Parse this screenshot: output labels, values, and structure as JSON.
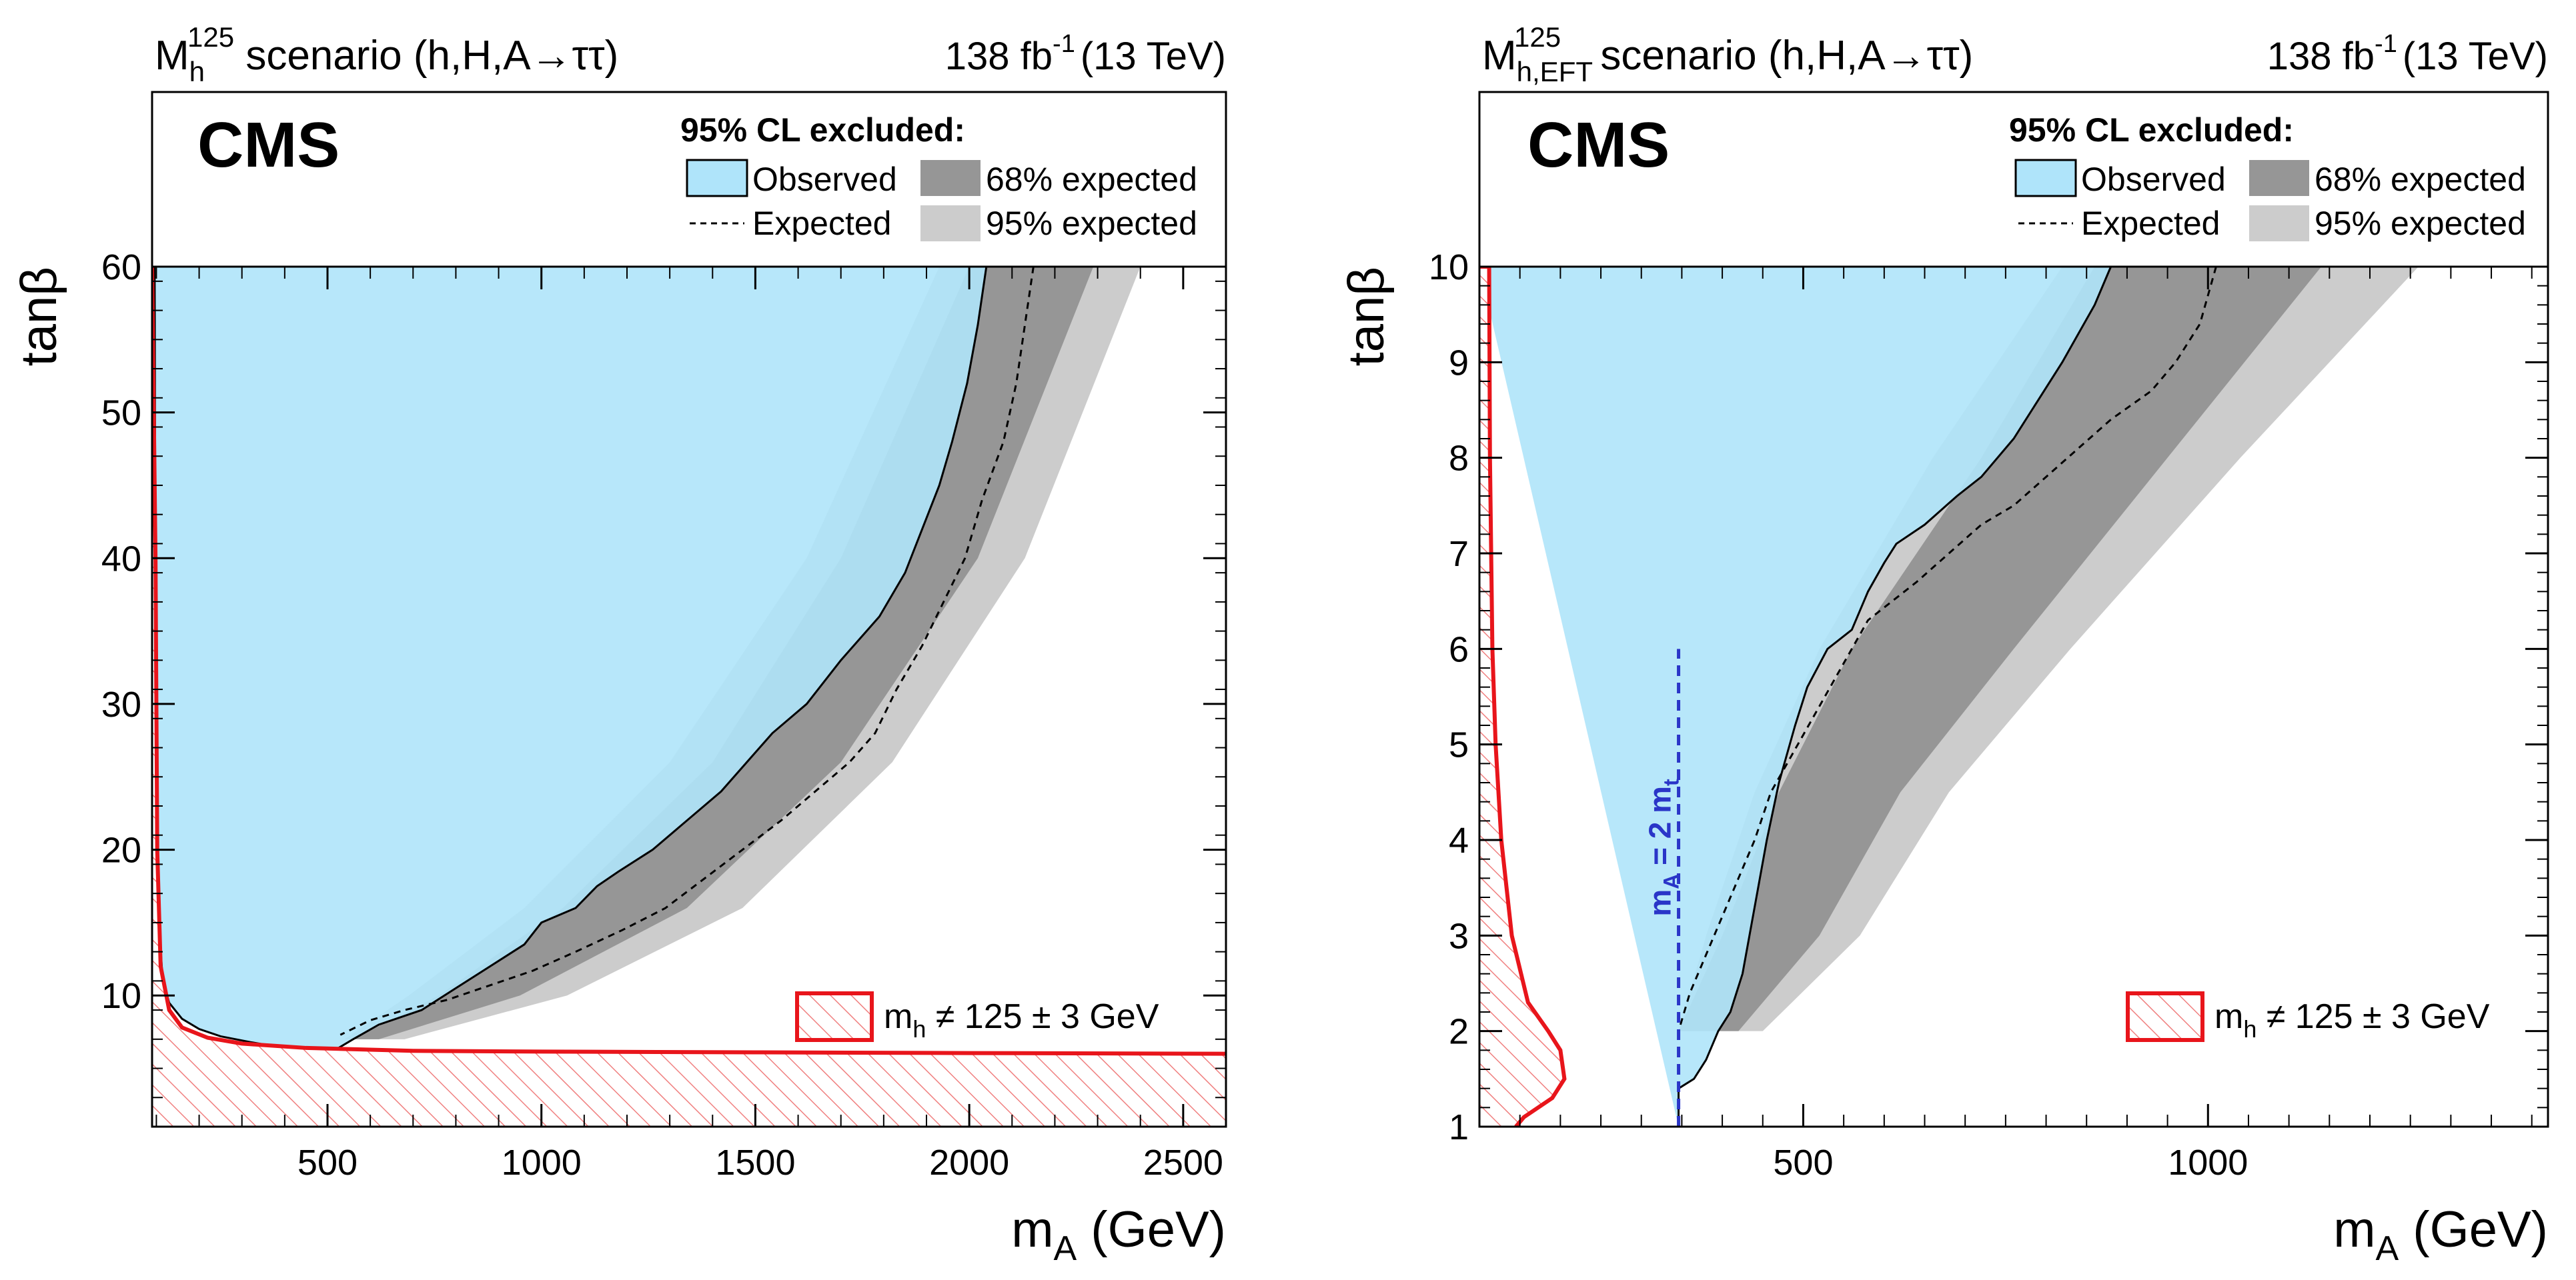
{
  "chart_data": [
    {
      "type": "area",
      "title": "M_h^125 scenario (h,H,A→ττ)",
      "title_main": "M",
      "title_sub": "h",
      "title_sup": "125",
      "title_rest": " scenario (h,H,A→ττ)",
      "lumi": "138 fb",
      "lumi_exp": "-1",
      "lumi_energy": "(13 TeV)",
      "experiment": "CMS",
      "xlabel_main": "m",
      "xlabel_sub": "A",
      "xlabel_rest": " (GeV)",
      "ylabel": "tanβ",
      "xlim": [
        90,
        2600
      ],
      "ylim": [
        1,
        60
      ],
      "xticks": [
        500,
        1000,
        1500,
        2000,
        2500
      ],
      "yticks": [
        10,
        20,
        30,
        40,
        50,
        60
      ],
      "legend": {
        "header": "95% CL excluded:",
        "observed": "Observed",
        "expected": "Expected",
        "band68": "68% expected",
        "band95": "95% expected"
      },
      "hatch_label_main": "m",
      "hatch_label_sub": "h",
      "hatch_label_rest": " ≠ 125 ± 3 GeV",
      "series": [
        {
          "name": "Observed",
          "x": [
            90,
            2040,
            2020,
            1995,
            1960,
            1930,
            1890,
            1850,
            1810,
            1790,
            1760,
            1700,
            1620,
            1540,
            1480,
            1420,
            1380,
            1320,
            1260,
            1180,
            1130,
            1080,
            1000,
            960,
            880,
            800,
            720,
            620,
            560,
            520,
            520,
            400,
            320,
            250,
            200,
            160,
            130,
            115,
            108,
            102,
            98,
            96
          ],
          "y": [
            60,
            60,
            56,
            52,
            48,
            45,
            42,
            39,
            37,
            36,
            35,
            33,
            30,
            28,
            26,
            24,
            23,
            21.5,
            20,
            18.5,
            17.5,
            16,
            15,
            13.5,
            12,
            10.5,
            9,
            8,
            7,
            6.3,
            6.3,
            6.4,
            6.8,
            7.2,
            7.7,
            8.4,
            9.5,
            11,
            14,
            20,
            35,
            60
          ]
        },
        {
          "name": "Expected",
          "x": [
            2150,
            2130,
            2110,
            2080,
            2030,
            1990,
            1940,
            1890,
            1830,
            1780,
            1720,
            1640,
            1560,
            1470,
            1380,
            1290,
            1190,
            1080,
            980,
            880,
            780,
            680,
            600,
            530
          ],
          "y": [
            60,
            56,
            52,
            48,
            44,
            40,
            37,
            34,
            31,
            28,
            26,
            24,
            22,
            20,
            18,
            16,
            14.5,
            13,
            11.7,
            10.7,
            9.7,
            9,
            8.3,
            7.3
          ]
        },
        {
          "name": "68% expected",
          "lower_x": [
            2000,
            1700,
            1400,
            1050,
            760,
            560
          ],
          "upper_x": [
            2290,
            2020,
            1700,
            1340,
            950,
            620
          ],
          "y": [
            60,
            40,
            26,
            16,
            10,
            7
          ]
        },
        {
          "name": "95% expected",
          "lower_x": [
            1930,
            1620,
            1300,
            960,
            690,
            540
          ],
          "upper_x": [
            2400,
            2130,
            1820,
            1470,
            1060,
            680
          ],
          "y": [
            60,
            40,
            26,
            16,
            10,
            7
          ]
        },
        {
          "name": "m_h ≠ 125 ± 3 GeV",
          "x": [
            90,
            98,
            102,
            110,
            130,
            160,
            220,
            300,
            450,
            700,
            1000,
            1500,
            2000,
            2600
          ],
          "y": [
            60,
            40,
            20,
            12,
            9,
            7.8,
            7.1,
            6.7,
            6.4,
            6.2,
            6.15,
            6.1,
            6.05,
            6.0
          ]
        }
      ]
    },
    {
      "type": "area",
      "title": "M_h,EFT^125 scenario (h,H,A→ττ)",
      "title_main": "M",
      "title_sub": "h,EFT",
      "title_sup": "125",
      "title_rest": " scenario (h,H,A→ττ)",
      "lumi": "138 fb",
      "lumi_exp": "-1",
      "lumi_energy": "(13 TeV)",
      "experiment": "CMS",
      "xlabel_main": "m",
      "xlabel_sub": "A",
      "xlabel_rest": " (GeV)",
      "ylabel": "tanβ",
      "xlim": [
        100,
        1420
      ],
      "ylim": [
        1,
        10
      ],
      "xticks": [
        500,
        1000
      ],
      "yticks": [
        1,
        2,
        3,
        4,
        5,
        6,
        7,
        8,
        9,
        10
      ],
      "threshold_label": "m_A = 2 m_t",
      "threshold_main": "m",
      "threshold_sub": "A",
      "threshold_mid": " = 2 m",
      "threshold_sub2": "t",
      "threshold_x": 346,
      "legend": {
        "header": "95% CL excluded:",
        "observed": "Observed",
        "expected": "Expected",
        "band68": "68% expected",
        "band95": "95% expected"
      },
      "hatch_label_main": "m",
      "hatch_label_sub": "h",
      "hatch_label_rest": " ≠ 125 ± 3 GeV",
      "series": [
        {
          "name": "Observed",
          "x": [
            100,
            880,
            860,
            820,
            790,
            760,
            720,
            690,
            650,
            615,
            600,
            580,
            560,
            530,
            505,
            490,
            470,
            455,
            440,
            425,
            410,
            395,
            380,
            365,
            346,
            346
          ],
          "y": [
            10,
            10,
            9.6,
            9.0,
            8.6,
            8.2,
            7.8,
            7.6,
            7.3,
            7.1,
            6.9,
            6.6,
            6.2,
            6.0,
            5.6,
            5.2,
            4.6,
            4.0,
            3.3,
            2.6,
            2.2,
            2.0,
            1.7,
            1.5,
            1.4,
            1.0
          ]
        },
        {
          "name": "Expected",
          "x": [
            1010,
            990,
            960,
            930,
            880,
            840,
            800,
            760,
            720,
            680,
            640,
            610,
            580,
            560,
            540,
            520,
            500,
            480,
            460,
            440,
            420,
            400,
            380,
            360,
            346
          ],
          "y": [
            10,
            9.4,
            9.0,
            8.7,
            8.4,
            8.1,
            7.8,
            7.5,
            7.3,
            7.0,
            6.7,
            6.5,
            6.3,
            6.0,
            5.7,
            5.4,
            5.1,
            4.8,
            4.5,
            4.0,
            3.6,
            3.2,
            2.8,
            2.4,
            2.0
          ]
        },
        {
          "name": "68% expected",
          "lower_x": [
            860,
            720,
            560,
            470,
            400,
            346
          ],
          "upper_x": [
            1140,
            950,
            760,
            620,
            520,
            420
          ],
          "y": [
            10,
            8,
            6,
            4.5,
            3,
            2
          ]
        },
        {
          "name": "95% expected",
          "lower_x": [
            820,
            660,
            520,
            440,
            380,
            346
          ],
          "upper_x": [
            1260,
            1040,
            830,
            680,
            570,
            450
          ],
          "y": [
            10,
            8,
            6,
            4.5,
            3,
            2
          ]
        },
        {
          "name": "m_h ≠ 125 ± 3 GeV",
          "x": [
            100,
            112,
            113,
            116,
            120,
            127,
            140,
            160,
            185,
            200,
            205,
            190,
            155,
            145
          ],
          "y": [
            10,
            10,
            8,
            6,
            5,
            4,
            3,
            2.3,
            2.0,
            1.8,
            1.5,
            1.3,
            1.1,
            1.0
          ]
        }
      ]
    }
  ]
}
